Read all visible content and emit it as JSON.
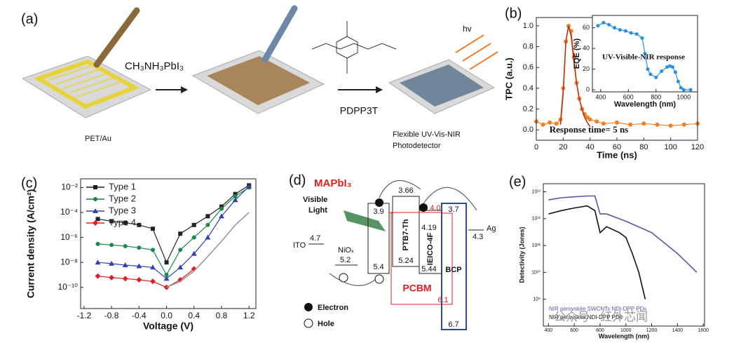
{
  "panel_labels": [
    "(a)",
    "(b)",
    "(c)",
    "(d)",
    "(e)"
  ],
  "schematic": {
    "precursor": "CH₃NH₃PbI₃",
    "substrate": "PET/Au",
    "polymer": "PDPP3T",
    "light": "hv",
    "device_lines": [
      "Flexible UV-Vis-NIR",
      "Photodetector"
    ]
  },
  "energy_diagram": {
    "perovskite": "MAPbI₃",
    "light_lines": [
      "Visible",
      "Light"
    ],
    "ito": {
      "name": "ITO",
      "level": "4.7"
    },
    "nio": {
      "name": "NiOₓ",
      "level": "5.2"
    },
    "mapbi": {
      "lumo": "3.9",
      "homo": "5.4"
    },
    "ptb7": {
      "name": "PTB7-Th",
      "lumo": "3.66",
      "homo": "5.24"
    },
    "ieico": {
      "name": "IEICO-4F",
      "lumo": "4.19",
      "homo": "5.44"
    },
    "pcbm": {
      "name": "PCBM",
      "lumo": "4.0",
      "homo": "6.1"
    },
    "bcp": {
      "name": "BCP",
      "lumo": "3.7",
      "homo": "6.7"
    },
    "ag": {
      "name": "Ag",
      "level": "4.3"
    },
    "legend": [
      "Electron",
      "Hole"
    ]
  },
  "watermark": "公众号 · 红外芯闻",
  "chart_data": [
    {
      "type": "line",
      "x_label": "Time (ns)",
      "y_label": "TPC (a.u.)",
      "xlim": [
        0,
        120
      ],
      "ylim": [
        -0.1,
        1.08
      ],
      "xticks": [
        0,
        20,
        40,
        60,
        80,
        100,
        120
      ],
      "yticks": [
        {
          "value": 0,
          "label": "0.0"
        },
        0.2,
        0.4,
        0.6,
        0.8,
        {
          "value": 1,
          "label": "1.0"
        }
      ],
      "annotations": [
        "Response time= 5 ns"
      ],
      "series": [
        {
          "color": "#f08020",
          "marker": "circle",
          "x": [
            0,
            5,
            10,
            15,
            18,
            20,
            22,
            24,
            26,
            28,
            30,
            32,
            34,
            36,
            38,
            40,
            45,
            50,
            60,
            70,
            80,
            90,
            100,
            110,
            120
          ],
          "values": [
            0.08,
            0.05,
            0.07,
            0.06,
            0.1,
            0.4,
            0.85,
            1.0,
            0.95,
            0.7,
            0.45,
            0.3,
            0.2,
            0.15,
            0.12,
            0.1,
            0.08,
            0.06,
            0.07,
            0.05,
            0.06,
            0.05,
            0.04,
            0.05,
            0.06
          ]
        },
        {
          "color": "#c03010",
          "x": [
            18,
            20,
            22,
            24,
            26,
            28,
            30,
            32,
            34,
            36,
            38,
            40
          ],
          "values": [
            0.05,
            0.35,
            0.85,
            1.0,
            0.9,
            0.65,
            0.45,
            0.3,
            0.2,
            0.12,
            0.07,
            0.03
          ]
        }
      ]
    },
    {
      "type": "line",
      "x_label": "Wavelength (nm)",
      "y_label": "EQE (%)",
      "xlim": [
        340,
        1100
      ],
      "ylim": [
        -2,
        72
      ],
      "xticks": [
        400,
        600,
        800,
        1000
      ],
      "yticks": [
        0,
        20,
        40,
        60
      ],
      "annotations": [
        "UV-Visible-NIR response"
      ],
      "series": [
        {
          "color": "#2a8fe0",
          "marker": "circle",
          "x": [
            380,
            420,
            460,
            500,
            540,
            580,
            620,
            660,
            700,
            720,
            740,
            760,
            800,
            840,
            880,
            900,
            920,
            940,
            960,
            980,
            1000,
            1050
          ],
          "values": [
            62,
            65,
            63,
            60,
            58,
            57,
            55,
            54,
            50,
            35,
            20,
            15,
            12,
            18,
            22,
            23,
            22,
            17,
            8,
            2,
            0,
            0
          ]
        }
      ]
    },
    {
      "type": "line",
      "x_label": "Voltage (V)",
      "y_label": "Current density (A/cm²)",
      "yscale": "log",
      "xlim": [
        -1.25,
        1.3
      ],
      "ylim": [
        2e-12,
        0.05
      ],
      "xticks": [
        -1.2,
        -0.8,
        -0.4,
        {
          "value": 0,
          "label": "0.0"
        },
        0.4,
        0.8,
        1.2
      ],
      "yticks": [
        {
          "value": 1e-10,
          "label": "10⁻¹⁰"
        },
        {
          "value": 1e-08,
          "label": "10⁻⁸"
        },
        {
          "value": 1e-06,
          "label": "10⁻⁶"
        },
        {
          "value": 0.0001,
          "label": "10⁻⁴"
        },
        {
          "value": 0.01,
          "label": "10⁻²"
        }
      ],
      "legend": "upper left",
      "series": [
        {
          "name": "Type 1",
          "color": "#222222",
          "marker": "square",
          "x": [
            -1.0,
            -0.8,
            -0.6,
            -0.4,
            -0.2,
            0,
            0.2,
            0.4,
            0.6,
            0.8,
            1.0,
            1.2
          ],
          "values": [
            3e-05,
            2e-05,
            1.5e-05,
            1e-05,
            5e-06,
            1e-08,
            2e-06,
            1e-05,
            5e-05,
            0.0003,
            0.003,
            0.015
          ]
        },
        {
          "name": "Type 2",
          "color": "#1a8a4a",
          "marker": "circle",
          "x": [
            -1.0,
            -0.8,
            -0.6,
            -0.4,
            -0.2,
            0,
            0.2,
            0.4,
            0.6,
            0.8,
            1.0,
            1.2
          ],
          "values": [
            3e-07,
            2.5e-07,
            2e-07,
            1.5e-07,
            1e-07,
            1e-09,
            1e-07,
            1e-06,
            1e-05,
            0.0002,
            0.002,
            0.01
          ]
        },
        {
          "name": "Type 3",
          "color": "#3344aa",
          "marker": "triangle",
          "x": [
            -1.0,
            -0.8,
            -0.6,
            -0.4,
            -0.2,
            0,
            0.2,
            0.4,
            0.6,
            0.8,
            1.0,
            1.2
          ],
          "values": [
            1e-08,
            8e-09,
            6e-09,
            5e-09,
            4e-09,
            5e-10,
            4e-09,
            5e-08,
            1e-06,
            5e-05,
            0.001,
            0.012
          ]
        },
        {
          "name": "Type 4",
          "color": "#e02020",
          "marker": "diamond",
          "x": [
            -1.0,
            -0.8,
            -0.6,
            -0.4,
            -0.2,
            0,
            0.2,
            0.4
          ],
          "values": [
            8e-10,
            6e-10,
            5e-10,
            4e-10,
            3e-10,
            1e-10,
            4e-10,
            3e-09
          ]
        },
        {
          "color": "#999999",
          "x": [
            0,
            0.2,
            0.4,
            0.6,
            0.8,
            1.0,
            1.2
          ],
          "values": [
            1e-10,
            3e-10,
            2e-09,
            3e-08,
            5e-07,
            1e-05,
            0.0001
          ]
        }
      ]
    },
    {
      "type": "line",
      "x_label": "Wavelength (nm)",
      "y_label": "Detectivity (Jones)",
      "yscale": "log",
      "xlim": [
        360,
        1610
      ],
      "ylim": [
        100000000.0,
        20000000000000.0
      ],
      "xticks": [
        400,
        600,
        800,
        1000,
        1200,
        1400,
        1600
      ],
      "yticks": [
        {
          "value": 1000000000.0,
          "label": "10⁹"
        },
        {
          "value": 10000000000.0,
          "label": "10¹⁰"
        },
        {
          "value": 100000000000.0,
          "label": "10¹¹"
        },
        {
          "value": 1000000000000.0,
          "label": "10¹²"
        },
        {
          "value": 10000000000000.0,
          "label": "10¹³"
        }
      ],
      "legend": "lower left",
      "legend_swatches": false,
      "series": [
        {
          "name": "NIR perovskite SWCNTs NDI-DPP PDs",
          "color": "#5555aa",
          "x": [
            400,
            500,
            600,
            700,
            760,
            800,
            850,
            1000,
            1200,
            1400,
            1550
          ],
          "values": [
            5000000000000.0,
            6000000000000.0,
            6500000000000.0,
            7000000000000.0,
            7000000000000.0,
            1500000000000.0,
            1500000000000.0,
            800000000000.0,
            300000000000.0,
            50000000000.0,
            10000000000.0
          ]
        },
        {
          "name": "NIR perovskite NDI-DPP PDs",
          "color": "#111111",
          "x": [
            400,
            500,
            600,
            700,
            760,
            800,
            850,
            950,
            1000,
            1050,
            1100,
            1150
          ],
          "values": [
            1500000000000.0,
            2000000000000.0,
            2500000000000.0,
            3000000000000.0,
            2000000000000.0,
            300000000000.0,
            500000000000.0,
            300000000000.0,
            200000000000.0,
            50000000000.0,
            10000000000.0,
            1000000000.0
          ]
        }
      ]
    }
  ]
}
